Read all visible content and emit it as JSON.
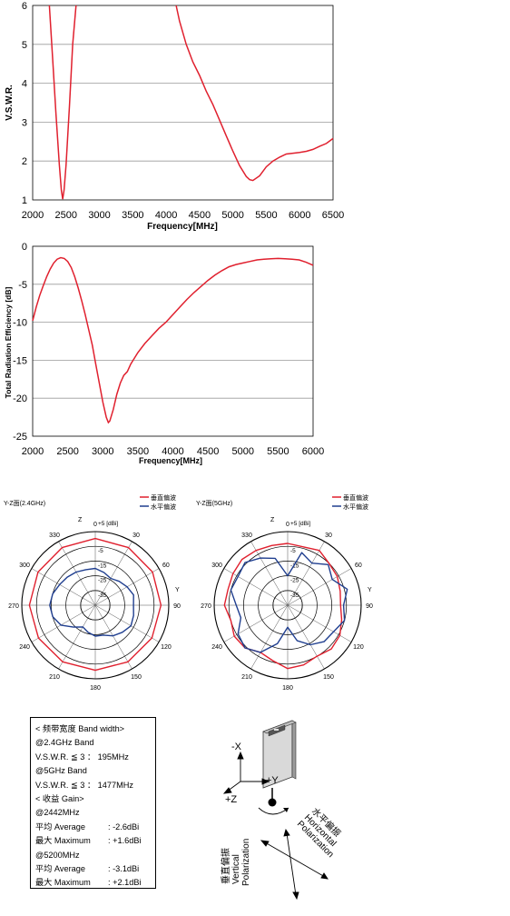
{
  "chart_data": [
    {
      "type": "line",
      "ylabel": "V.S.W.R.",
      "xlabel": "Frequency[MHz]",
      "xlim": [
        2000,
        6500
      ],
      "ylim": [
        1,
        6
      ],
      "x_ticks": [
        "2000",
        "2500",
        "3000",
        "3500",
        "4000",
        "4500",
        "5000",
        "5500",
        "6000",
        "6500"
      ],
      "y_ticks": [
        "1",
        "2",
        "3",
        "4",
        "5",
        "6"
      ],
      "grid": true,
      "color": "#e0202e",
      "series": [
        {
          "x": [
            2250,
            2300,
            2350,
            2400,
            2430,
            2450,
            2470,
            2500,
            2550,
            2600,
            2650
          ],
          "y": [
            6.0,
            4.6,
            3.2,
            1.9,
            1.25,
            1.02,
            1.25,
            1.9,
            3.4,
            5.0,
            6.0
          ]
        },
        {
          "x": [
            4150,
            4200,
            4300,
            4400,
            4500,
            4600,
            4700,
            4800,
            4900,
            5000,
            5100,
            5200,
            5250,
            5300,
            5400,
            5500,
            5600,
            5700,
            5800,
            5900,
            6000,
            6100,
            6200,
            6300,
            6400,
            6500
          ],
          "y": [
            6.0,
            5.6,
            5.0,
            4.55,
            4.2,
            3.8,
            3.45,
            3.05,
            2.65,
            2.25,
            1.88,
            1.6,
            1.52,
            1.5,
            1.62,
            1.85,
            2.0,
            2.1,
            2.18,
            2.2,
            2.22,
            2.25,
            2.3,
            2.38,
            2.45,
            2.58
          ]
        }
      ]
    },
    {
      "type": "line",
      "ylabel": "Total Radiation Efficiency [dB]",
      "xlabel": "Frequency[MHz]",
      "xlim": [
        2000,
        6000
      ],
      "ylim": [
        -25,
        0
      ],
      "x_ticks": [
        "2000",
        "2500",
        "3000",
        "3500",
        "4000",
        "4500",
        "5000",
        "5500",
        "6000"
      ],
      "y_ticks": [
        "0",
        "-5",
        "-10",
        "-15",
        "-20",
        "-25"
      ],
      "grid": true,
      "color": "#e0202e",
      "series": [
        {
          "x": [
            2000,
            2050,
            2100,
            2150,
            2200,
            2250,
            2300,
            2350,
            2400,
            2450,
            2500,
            2550,
            2600,
            2650,
            2700,
            2750,
            2800,
            2850,
            2900,
            2950,
            3000,
            3050,
            3080,
            3100,
            3150,
            3200,
            3250,
            3300,
            3350,
            3400,
            3500,
            3600,
            3700,
            3800,
            3900,
            4000,
            4100,
            4200,
            4300,
            4400,
            4500,
            4600,
            4700,
            4800,
            4900,
            5000,
            5100,
            5200,
            5300,
            5400,
            5500,
            5600,
            5700,
            5800,
            5900,
            6000
          ],
          "y": [
            -9.8,
            -8.0,
            -6.5,
            -5.2,
            -4.0,
            -3.0,
            -2.2,
            -1.7,
            -1.5,
            -1.6,
            -2.0,
            -2.8,
            -4.0,
            -5.5,
            -7.2,
            -9.0,
            -11.0,
            -13.0,
            -15.5,
            -18.0,
            -20.5,
            -22.5,
            -23.2,
            -23.0,
            -21.5,
            -19.5,
            -18.0,
            -17.0,
            -16.5,
            -15.5,
            -14.0,
            -12.8,
            -11.8,
            -10.8,
            -10.0,
            -9.0,
            -8.0,
            -7.0,
            -6.1,
            -5.3,
            -4.5,
            -3.8,
            -3.2,
            -2.7,
            -2.4,
            -2.2,
            -2.0,
            -1.8,
            -1.7,
            -1.65,
            -1.6,
            -1.65,
            -1.7,
            -1.8,
            -2.1,
            -2.5
          ]
        }
      ]
    },
    {
      "type": "polar",
      "title": "Y-Z面(2.4GHz)",
      "unit": "+5 [dBi]",
      "axis_labels": {
        "top": "Z",
        "right": "Y"
      },
      "rings": [
        "+5",
        "-5",
        "-15",
        "-25",
        "-35"
      ],
      "rlim": [
        -45,
        5
      ],
      "angle_ticks": [
        "0",
        "30",
        "60",
        "90",
        "120",
        "150",
        "180",
        "210",
        "240",
        "270",
        "300",
        "330"
      ],
      "legend": [
        "垂直偏波",
        "水平偏波"
      ],
      "legend_colors": [
        "#e0202e",
        "#1f3e8f"
      ],
      "series": [
        {
          "name": "垂直偏波",
          "angles": [
            0,
            30,
            60,
            90,
            120,
            150,
            180,
            210,
            240,
            270,
            300,
            330
          ],
          "values": [
            0.3,
            0.2,
            0.0,
            -0.3,
            -0.5,
            -0.6,
            -0.8,
            -0.6,
            -0.4,
            -0.2,
            0.0,
            0.2
          ]
        },
        {
          "name": "水平偏波",
          "angles": [
            0,
            15,
            30,
            45,
            60,
            75,
            90,
            105,
            120,
            135,
            150,
            165,
            180,
            195,
            210,
            225,
            240,
            255,
            270,
            285,
            300,
            315,
            330,
            345
          ],
          "values": [
            -20,
            -22,
            -24,
            -22,
            -20,
            -18,
            -19,
            -18,
            -17,
            -19,
            -21,
            -24,
            -24,
            -26,
            -28,
            -24,
            -18,
            -15,
            -14,
            -15,
            -17,
            -18,
            -19,
            -20
          ]
        }
      ]
    },
    {
      "type": "polar",
      "title": "Y-Z面(5GHz)",
      "unit": "+5 [dBi]",
      "axis_labels": {
        "top": "Z",
        "right": "Y"
      },
      "rings": [
        "+5",
        "-5",
        "-15",
        "-25",
        "-35"
      ],
      "rlim": [
        -45,
        5
      ],
      "angle_ticks": [
        "0",
        "30",
        "60",
        "90",
        "120",
        "150",
        "180",
        "210",
        "240",
        "270",
        "300",
        "330"
      ],
      "legend": [
        "垂直偏波",
        "水平偏波"
      ],
      "legend_colors": [
        "#e0202e",
        "#1f3e8f"
      ],
      "series": [
        {
          "name": "垂直偏波",
          "angles": [
            0,
            15,
            30,
            45,
            60,
            75,
            90,
            105,
            120,
            135,
            150,
            165,
            180,
            195,
            210,
            225,
            240,
            255,
            270,
            285,
            300,
            315,
            330,
            345
          ],
          "values": [
            -3,
            -4,
            -2,
            -5,
            -6,
            -8,
            -9,
            -7,
            -4,
            -3,
            -5,
            -3,
            -2,
            -6,
            -8,
            -4,
            -3,
            -5,
            -2,
            -3,
            -2,
            -1,
            -2,
            -3
          ]
        },
        {
          "name": "水平偏波",
          "angles": [
            0,
            15,
            30,
            45,
            60,
            75,
            90,
            105,
            120,
            135,
            150,
            165,
            180,
            195,
            210,
            225,
            240,
            255,
            270,
            285,
            300,
            315,
            330,
            345
          ],
          "values": [
            -25,
            -8,
            -12,
            -6,
            -10,
            -3,
            -7,
            -5,
            -9,
            -10,
            -14,
            -20,
            -30,
            -18,
            -8,
            -4,
            -6,
            -12,
            -10,
            -5,
            -6,
            -4,
            -8,
            -12
          ]
        }
      ]
    }
  ],
  "spec": {
    "band_header": "< 频带宽度 Band width>",
    "band24": "@2.4GHz Band",
    "vswr1_label": "V.S.W.R. ≦ 3 ：",
    "vswr1_value": "195MHz",
    "band5": "@5GHz Band",
    "vswr2_label": "V.S.W.R. ≦ 3 ：",
    "vswr2_value": "1477MHz",
    "gain_header": "< 收益 Gain>",
    "g2442": "@2442MHz",
    "avg1_label": "平均 Average",
    "avg1_value": ": -2.6dBi",
    "max1_label": "最大 Maximum",
    "max1_value": ": +1.6dBi",
    "g5200": "@5200MHz",
    "avg2_label": "平均 Average",
    "avg2_value": ": -3.1dBi",
    "max2_label": "最大 Maximum",
    "max2_value": ": +2.1dBi"
  },
  "diagram": {
    "minus_x": "-X",
    "plus_y": "+Y",
    "plus_z": "+Z",
    "horizontal_jp": "水平偏振",
    "horizontal_en": "Horizontal",
    "polarization": "Polarization",
    "vertical_jp": "垂直偏振",
    "vertical_en": "Vertical",
    "polarization2": "Polarization"
  }
}
